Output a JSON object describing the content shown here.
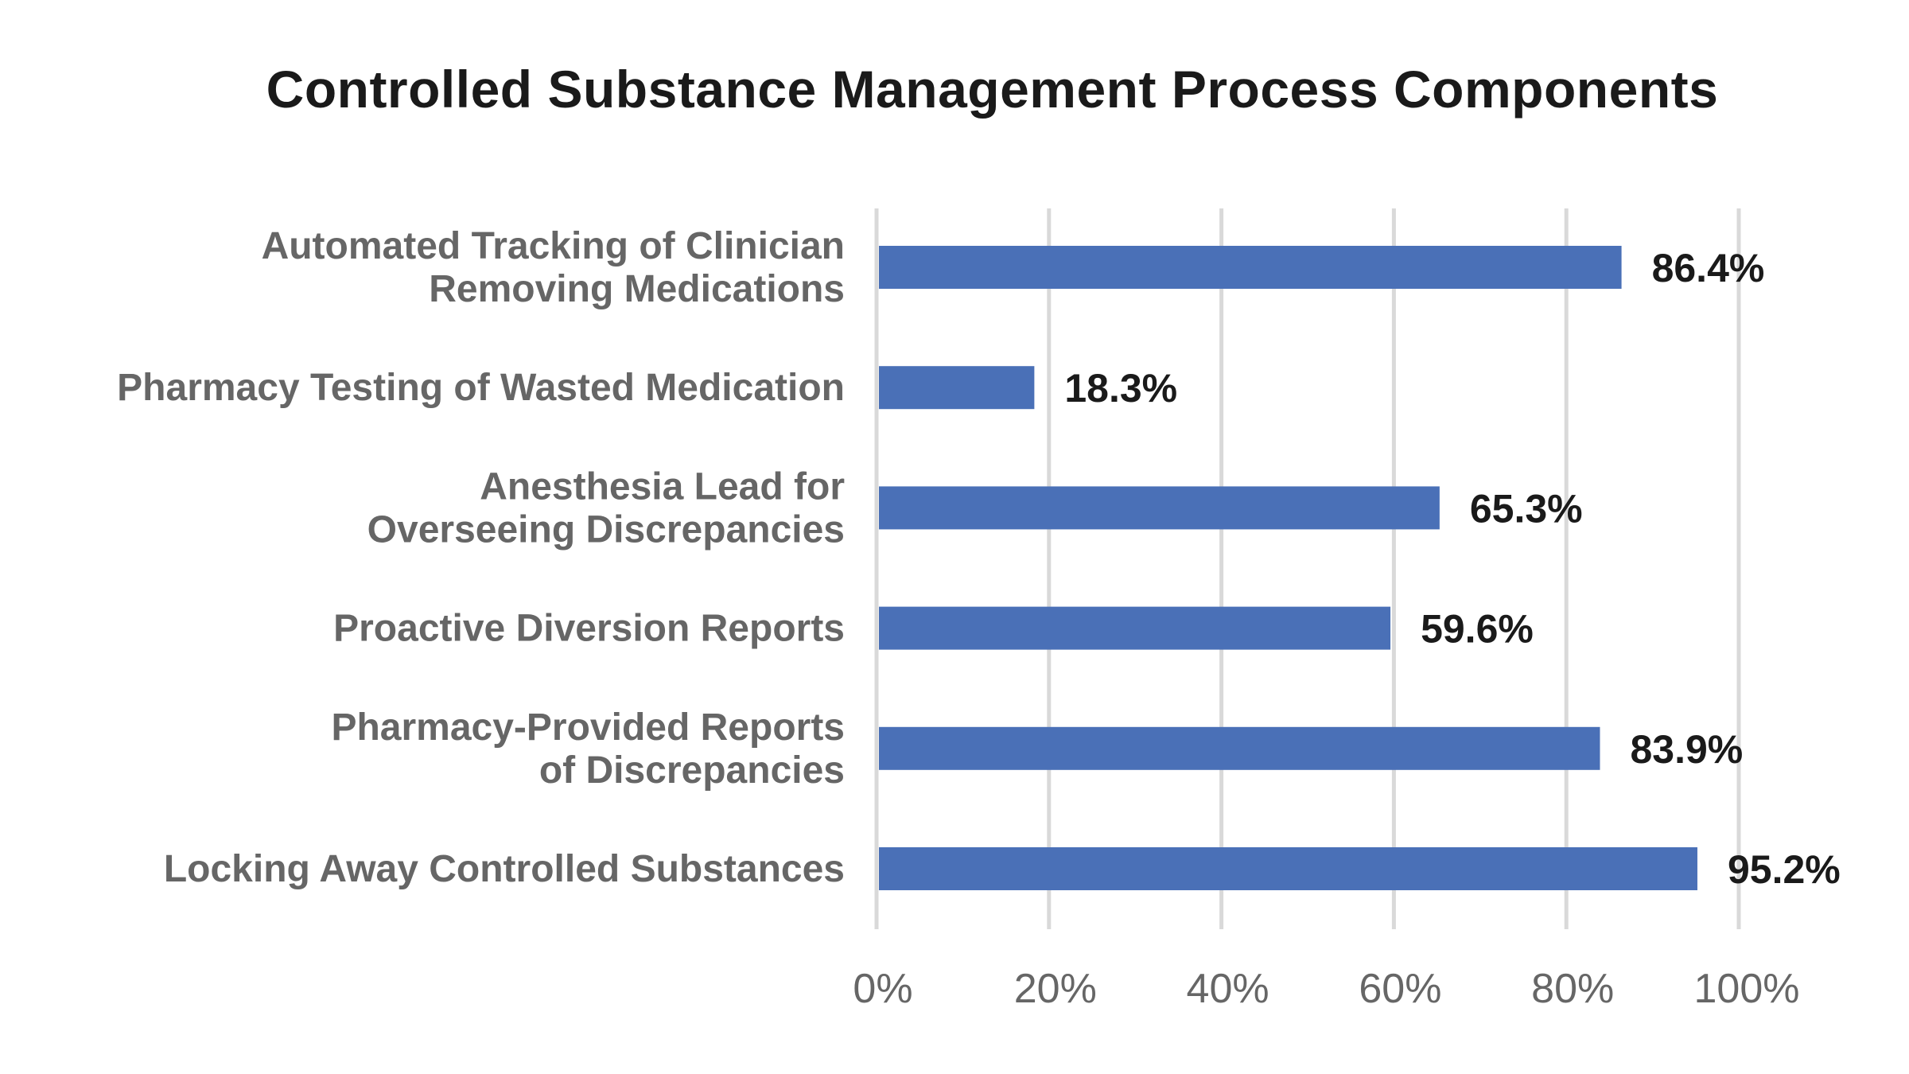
{
  "chart_data": {
    "type": "bar",
    "orientation": "horizontal",
    "title": "Controlled Substance Management Process Components",
    "xlabel": "",
    "ylabel": "",
    "categories": [
      [
        "Automated Tracking of Clinician",
        "Removing Medications"
      ],
      [
        "Pharmacy Testing of Wasted Medication"
      ],
      [
        "Anesthesia Lead for",
        "Overseeing Discrepancies"
      ],
      [
        "Proactive Diversion Reports"
      ],
      [
        "Pharmacy-Provided Reports",
        "of Discrepancies"
      ],
      [
        "Locking Away Controlled Substances"
      ]
    ],
    "values": [
      86.4,
      18.3,
      65.3,
      59.6,
      83.9,
      95.2
    ],
    "data_labels": [
      "86.4%",
      "18.3%",
      "65.3%",
      "59.6%",
      "83.9%",
      "95.2%"
    ],
    "xlim": [
      0,
      100
    ],
    "xticks": [
      0,
      20,
      40,
      60,
      80,
      100
    ],
    "xtick_labels": [
      "0%",
      "20%",
      "40%",
      "60%",
      "80%",
      "100%"
    ],
    "grid": true,
    "legend": "none",
    "colors": {
      "bar": "#4a70b7",
      "grid": "#d9d9d9",
      "category_text": "#666666",
      "value_text": "#1a1a1a",
      "tick_text": "#666666"
    }
  }
}
